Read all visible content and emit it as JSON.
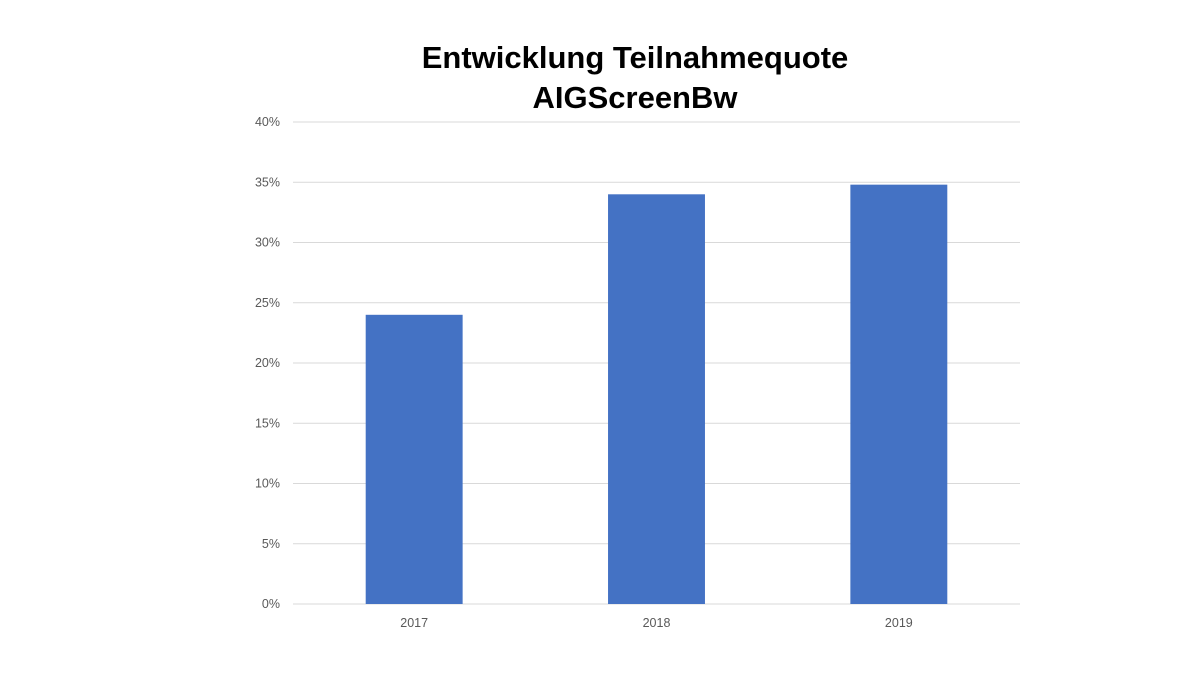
{
  "chart_data": {
    "type": "bar",
    "title_line1": "Entwicklung Teilnahmequote",
    "title_line2": "AIGScreenBw",
    "categories": [
      "2017",
      "2018",
      "2019"
    ],
    "values": [
      24.0,
      34.0,
      34.8
    ],
    "value_unit": "%",
    "ylim": [
      0,
      40
    ],
    "yticks": [
      "0%",
      "5%",
      "10%",
      "15%",
      "20%",
      "25%",
      "30%",
      "35%",
      "40%"
    ],
    "grid": true,
    "legend": "none",
    "bar_color": "#4472C4",
    "grid_color": "#D9D9D9"
  }
}
